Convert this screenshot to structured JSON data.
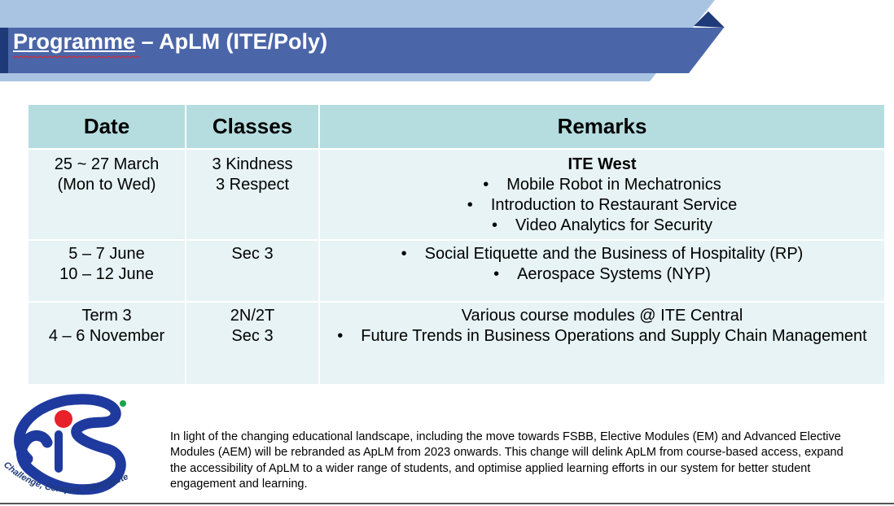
{
  "slide": {
    "title_part1": "Programme",
    "title_part2": " – ApLM (ITE/Poly)"
  },
  "table": {
    "headers": {
      "date": "Date",
      "classes": "Classes",
      "remarks": "Remarks"
    },
    "rows": [
      {
        "date": [
          "25 ~ 27 March",
          "(Mon to Wed)"
        ],
        "classes": [
          "3 Kindness",
          "3 Respect"
        ],
        "remarks_heading": "ITE West",
        "remarks_bullets": [
          "Mobile Robot in Mechatronics",
          "Introduction to Restaurant Service",
          "Video Analytics for Security"
        ]
      },
      {
        "date": [
          "5 – 7 June",
          "10 – 12 June"
        ],
        "classes": [
          "Sec 3"
        ],
        "remarks_bullets": [
          "Social Etiquette and the Business of Hospitality (RP)",
          "Aerospace Systems (NYP)"
        ]
      },
      {
        "date": [
          "Term 3",
          "4 – 6 November"
        ],
        "classes": [
          "2N/2T",
          "Sec 3"
        ],
        "remarks_heading": "Various course modules @ ITE Central",
        "remarks_bullets": [
          "Future Trends in Business Operations and Supply Chain Management"
        ]
      }
    ]
  },
  "logo": {
    "motto": "Challenge, Conquer, Contribute",
    "colors": {
      "primary": "#1f3a9e",
      "red_dot": "#e8212a",
      "green_dot": "#1aa34a"
    }
  },
  "footnote": "In light of the changing educational landscape, including the move towards FSBB, Elective Modules (EM) and Advanced Elective Modules (AEM) will be rebranded as ApLM from 2023 onwards. This change will delink ApLM from course-based access, expand the accessibility of ApLM to a wider range of students, and optimise applied learning efforts in our system for better student engagement and learning.",
  "colors": {
    "banner_light": "#a9c4e2",
    "banner_dark": "#4b66a8",
    "banner_navy": "#1f3a78",
    "header_fill": "#b5dde0",
    "cell_fill": "#e7f3f4"
  }
}
